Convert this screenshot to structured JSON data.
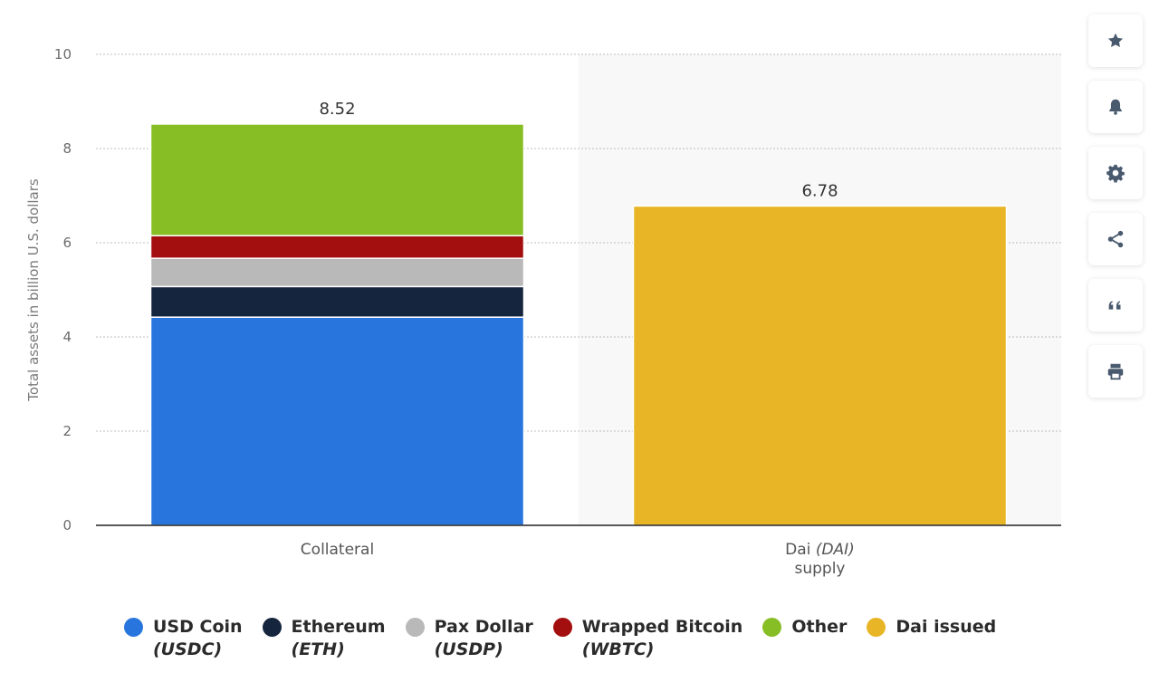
{
  "chart_data": {
    "type": "bar",
    "stacked": true,
    "ylabel": "Total assets in billion U.S. dollars",
    "ylim": [
      0,
      10
    ],
    "yticks": [
      0,
      2,
      4,
      6,
      8,
      10
    ],
    "grid": true,
    "legend_position": "bottom",
    "categories": [
      {
        "main": "Collateral",
        "italic": "",
        "line2": ""
      },
      {
        "main": "Dai ",
        "italic": "(DAI)",
        "line2": "supply"
      }
    ],
    "series": [
      {
        "name": "USD Coin",
        "sub": "(USDC)",
        "color": "#2876DD",
        "values": [
          4.42,
          null
        ]
      },
      {
        "name": "Ethereum",
        "sub": "(ETH)",
        "color": "#14253D",
        "values": [
          0.65,
          null
        ]
      },
      {
        "name": "Pax Dollar",
        "sub": "(USDP)",
        "color": "#B9B9B9",
        "values": [
          0.6,
          null
        ]
      },
      {
        "name": "Wrapped Bitcoin",
        "sub": "(WBTC)",
        "color": "#A30E0E",
        "values": [
          0.48,
          null
        ]
      },
      {
        "name": "Other",
        "sub": "",
        "color": "#88BE25",
        "values": [
          2.37,
          null
        ]
      },
      {
        "name": "Dai issued",
        "sub": "",
        "color": "#E8B526",
        "values": [
          null,
          6.78
        ]
      }
    ],
    "totals": [
      "8.52",
      "6.78"
    ]
  },
  "toolbar": {
    "buttons": [
      {
        "icon": "star-icon"
      },
      {
        "icon": "bell-icon"
      },
      {
        "icon": "gear-icon"
      },
      {
        "icon": "share-icon"
      },
      {
        "icon": "quote-icon"
      },
      {
        "icon": "print-icon"
      }
    ],
    "icon_color": "#4A5A6E"
  }
}
